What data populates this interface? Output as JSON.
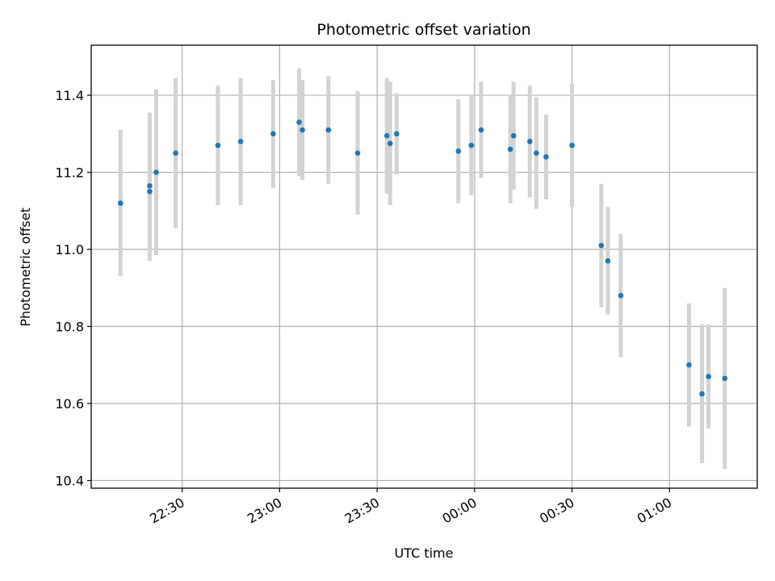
{
  "chart_data": {
    "type": "scatter",
    "title": "Photometric offset variation",
    "xlabel": "UTC time",
    "ylabel": "Photometric offset",
    "x_axis_kind": "time",
    "x_start": "22:02",
    "x_end": "01:27",
    "xticks": [
      "22:30",
      "23:00",
      "23:30",
      "00:00",
      "00:30",
      "01:00"
    ],
    "ylim": [
      10.38,
      11.53
    ],
    "yticks": [
      "10.4",
      "10.6",
      "10.8",
      "11.0",
      "11.2",
      "11.4"
    ],
    "grid": true,
    "colors": {
      "point": "#1f77b4",
      "errorbar": "#d3d3d3",
      "grid": "#b0b0b0"
    },
    "points": [
      {
        "x": "22:11",
        "y": 11.12,
        "yerr": 0.19
      },
      {
        "x": "22:20",
        "y": 11.15,
        "yerr": 0.18
      },
      {
        "x": "22:20",
        "y": 11.165,
        "yerr": 0.19
      },
      {
        "x": "22:22",
        "y": 11.2,
        "yerr": 0.215
      },
      {
        "x": "22:28",
        "y": 11.25,
        "yerr": 0.195
      },
      {
        "x": "22:41",
        "y": 11.27,
        "yerr": 0.155
      },
      {
        "x": "22:48",
        "y": 11.28,
        "yerr": 0.165
      },
      {
        "x": "22:58",
        "y": 11.3,
        "yerr": 0.14
      },
      {
        "x": "23:06",
        "y": 11.33,
        "yerr": 0.14
      },
      {
        "x": "23:07",
        "y": 11.31,
        "yerr": 0.13
      },
      {
        "x": "23:15",
        "y": 11.31,
        "yerr": 0.14
      },
      {
        "x": "23:24",
        "y": 11.25,
        "yerr": 0.16
      },
      {
        "x": "23:33",
        "y": 11.295,
        "yerr": 0.15
      },
      {
        "x": "23:34",
        "y": 11.275,
        "yerr": 0.16
      },
      {
        "x": "23:36",
        "y": 11.3,
        "yerr": 0.105
      },
      {
        "x": "23:55",
        "y": 11.255,
        "yerr": 0.135
      },
      {
        "x": "23:59",
        "y": 11.27,
        "yerr": 0.13
      },
      {
        "x": "00:02",
        "y": 11.31,
        "yerr": 0.125
      },
      {
        "x": "00:11",
        "y": 11.26,
        "yerr": 0.14
      },
      {
        "x": "00:12",
        "y": 11.295,
        "yerr": 0.14
      },
      {
        "x": "00:17",
        "y": 11.28,
        "yerr": 0.145
      },
      {
        "x": "00:19",
        "y": 11.25,
        "yerr": 0.145
      },
      {
        "x": "00:22",
        "y": 11.24,
        "yerr": 0.11
      },
      {
        "x": "00:30",
        "y": 11.27,
        "yerr": 0.16
      },
      {
        "x": "00:39",
        "y": 11.01,
        "yerr": 0.16
      },
      {
        "x": "00:41",
        "y": 10.97,
        "yerr": 0.14
      },
      {
        "x": "00:45",
        "y": 10.88,
        "yerr": 0.16
      },
      {
        "x": "01:06",
        "y": 10.7,
        "yerr": 0.16
      },
      {
        "x": "01:10",
        "y": 10.625,
        "yerr": 0.18
      },
      {
        "x": "01:12",
        "y": 10.67,
        "yerr": 0.135
      },
      {
        "x": "01:17",
        "y": 10.665,
        "yerr": 0.235
      }
    ]
  }
}
